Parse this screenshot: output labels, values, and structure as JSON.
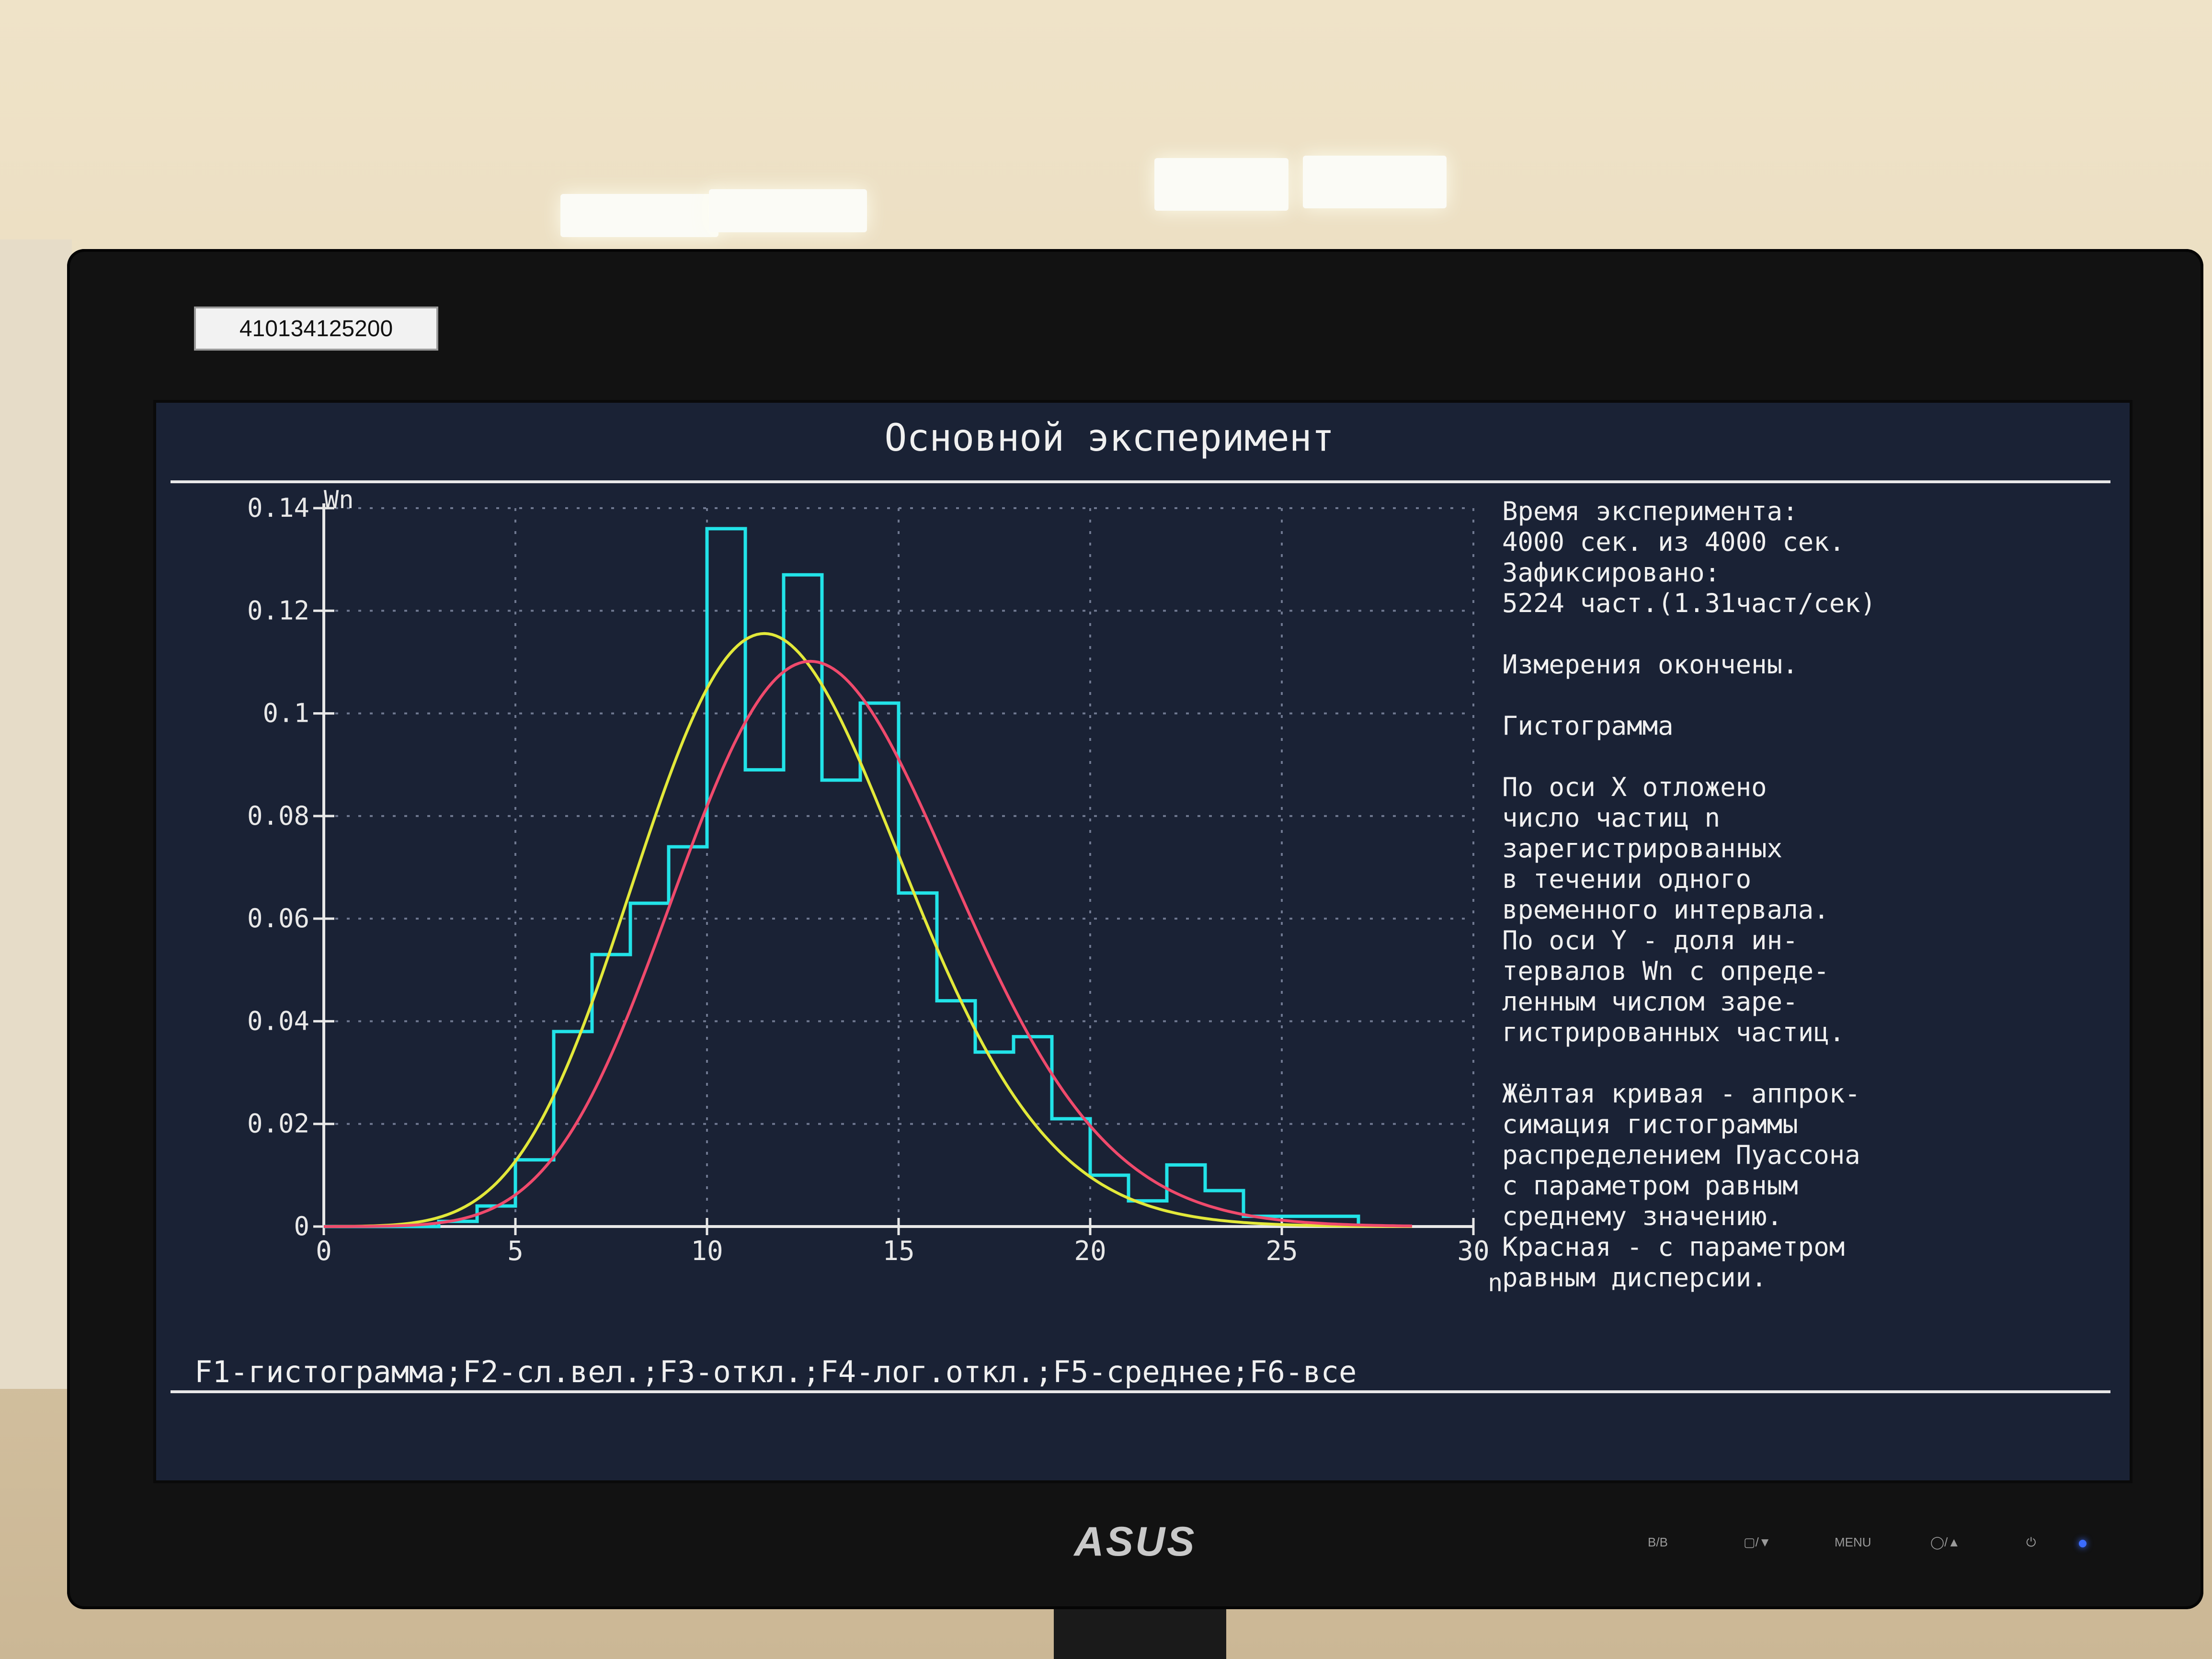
{
  "sticker_label": "410134125200",
  "brand": "ASUS",
  "monitor_buttons": [
    "B/B",
    "▢/▼",
    "MENU",
    "◯/▲",
    "⏻"
  ],
  "screen": {
    "title": "Основной эксперимент",
    "info_lines": [
      "Время эксперимента:",
      "4000 сек. из 4000 сек.",
      "Зафиксировано:",
      "5224 част.(1.31част/сек)",
      "",
      "Измерения окончены.",
      "",
      "Гистограмма",
      "",
      "По оси X отложено",
      "число частиц n",
      "зарегистрированных",
      "в течении одного",
      "временного интервала.",
      "По оси Y - доля ин-",
      "тервалов Wn с опреде-",
      "ленным числом заре-",
      "гистрированных частиц.",
      "",
      "Жёлтая кривая - аппрок-",
      "симация гистограммы",
      "распределением Пуассона",
      "с параметром равным",
      "среднему значению.",
      "Красная - с параметром",
      "равным дисперсии."
    ],
    "function_bar": "F1-гистограмма;F2-сл.вел.;F3-откл.;F4-лог.откл.;F5-среднее;F6-все"
  },
  "chart_data": {
    "type": "bar",
    "ylabel": "Wn",
    "xlabel": "n",
    "xlim": [
      0,
      30
    ],
    "ylim": [
      0,
      0.14
    ],
    "x_ticks": [
      "0",
      "5",
      "10",
      "15",
      "20",
      "25",
      "30"
    ],
    "y_ticks": [
      "0",
      "0.02",
      "0.04",
      "0.06",
      "0.08",
      "0.1",
      "0.12",
      "0.14"
    ],
    "grid": true,
    "colors": {
      "histogram": "#22e3e8",
      "yellow": "#e2e83a",
      "red": "#f04a6c",
      "axes": "#e8e8e8",
      "grid": "#6f7890"
    },
    "histogram": {
      "bins_start": [
        3,
        4,
        5,
        6,
        7,
        8,
        9,
        10,
        11,
        12,
        13,
        14,
        15,
        16,
        17,
        18,
        19,
        20,
        21,
        22,
        23,
        24,
        25,
        26
      ],
      "values": [
        0.001,
        0.004,
        0.013,
        0.038,
        0.053,
        0.063,
        0.074,
        0.136,
        0.089,
        0.127,
        0.087,
        0.102,
        0.065,
        0.044,
        0.034,
        0.037,
        0.021,
        0.01,
        0.005,
        0.012,
        0.007,
        0.002,
        0.002,
        0.002
      ]
    },
    "series": [
      {
        "name": "Жёлтая кривая",
        "color": "#e2e83a",
        "lambda": 12.0
      },
      {
        "name": "Красная",
        "color": "#f04a6c",
        "lambda": 13.2
      }
    ]
  }
}
